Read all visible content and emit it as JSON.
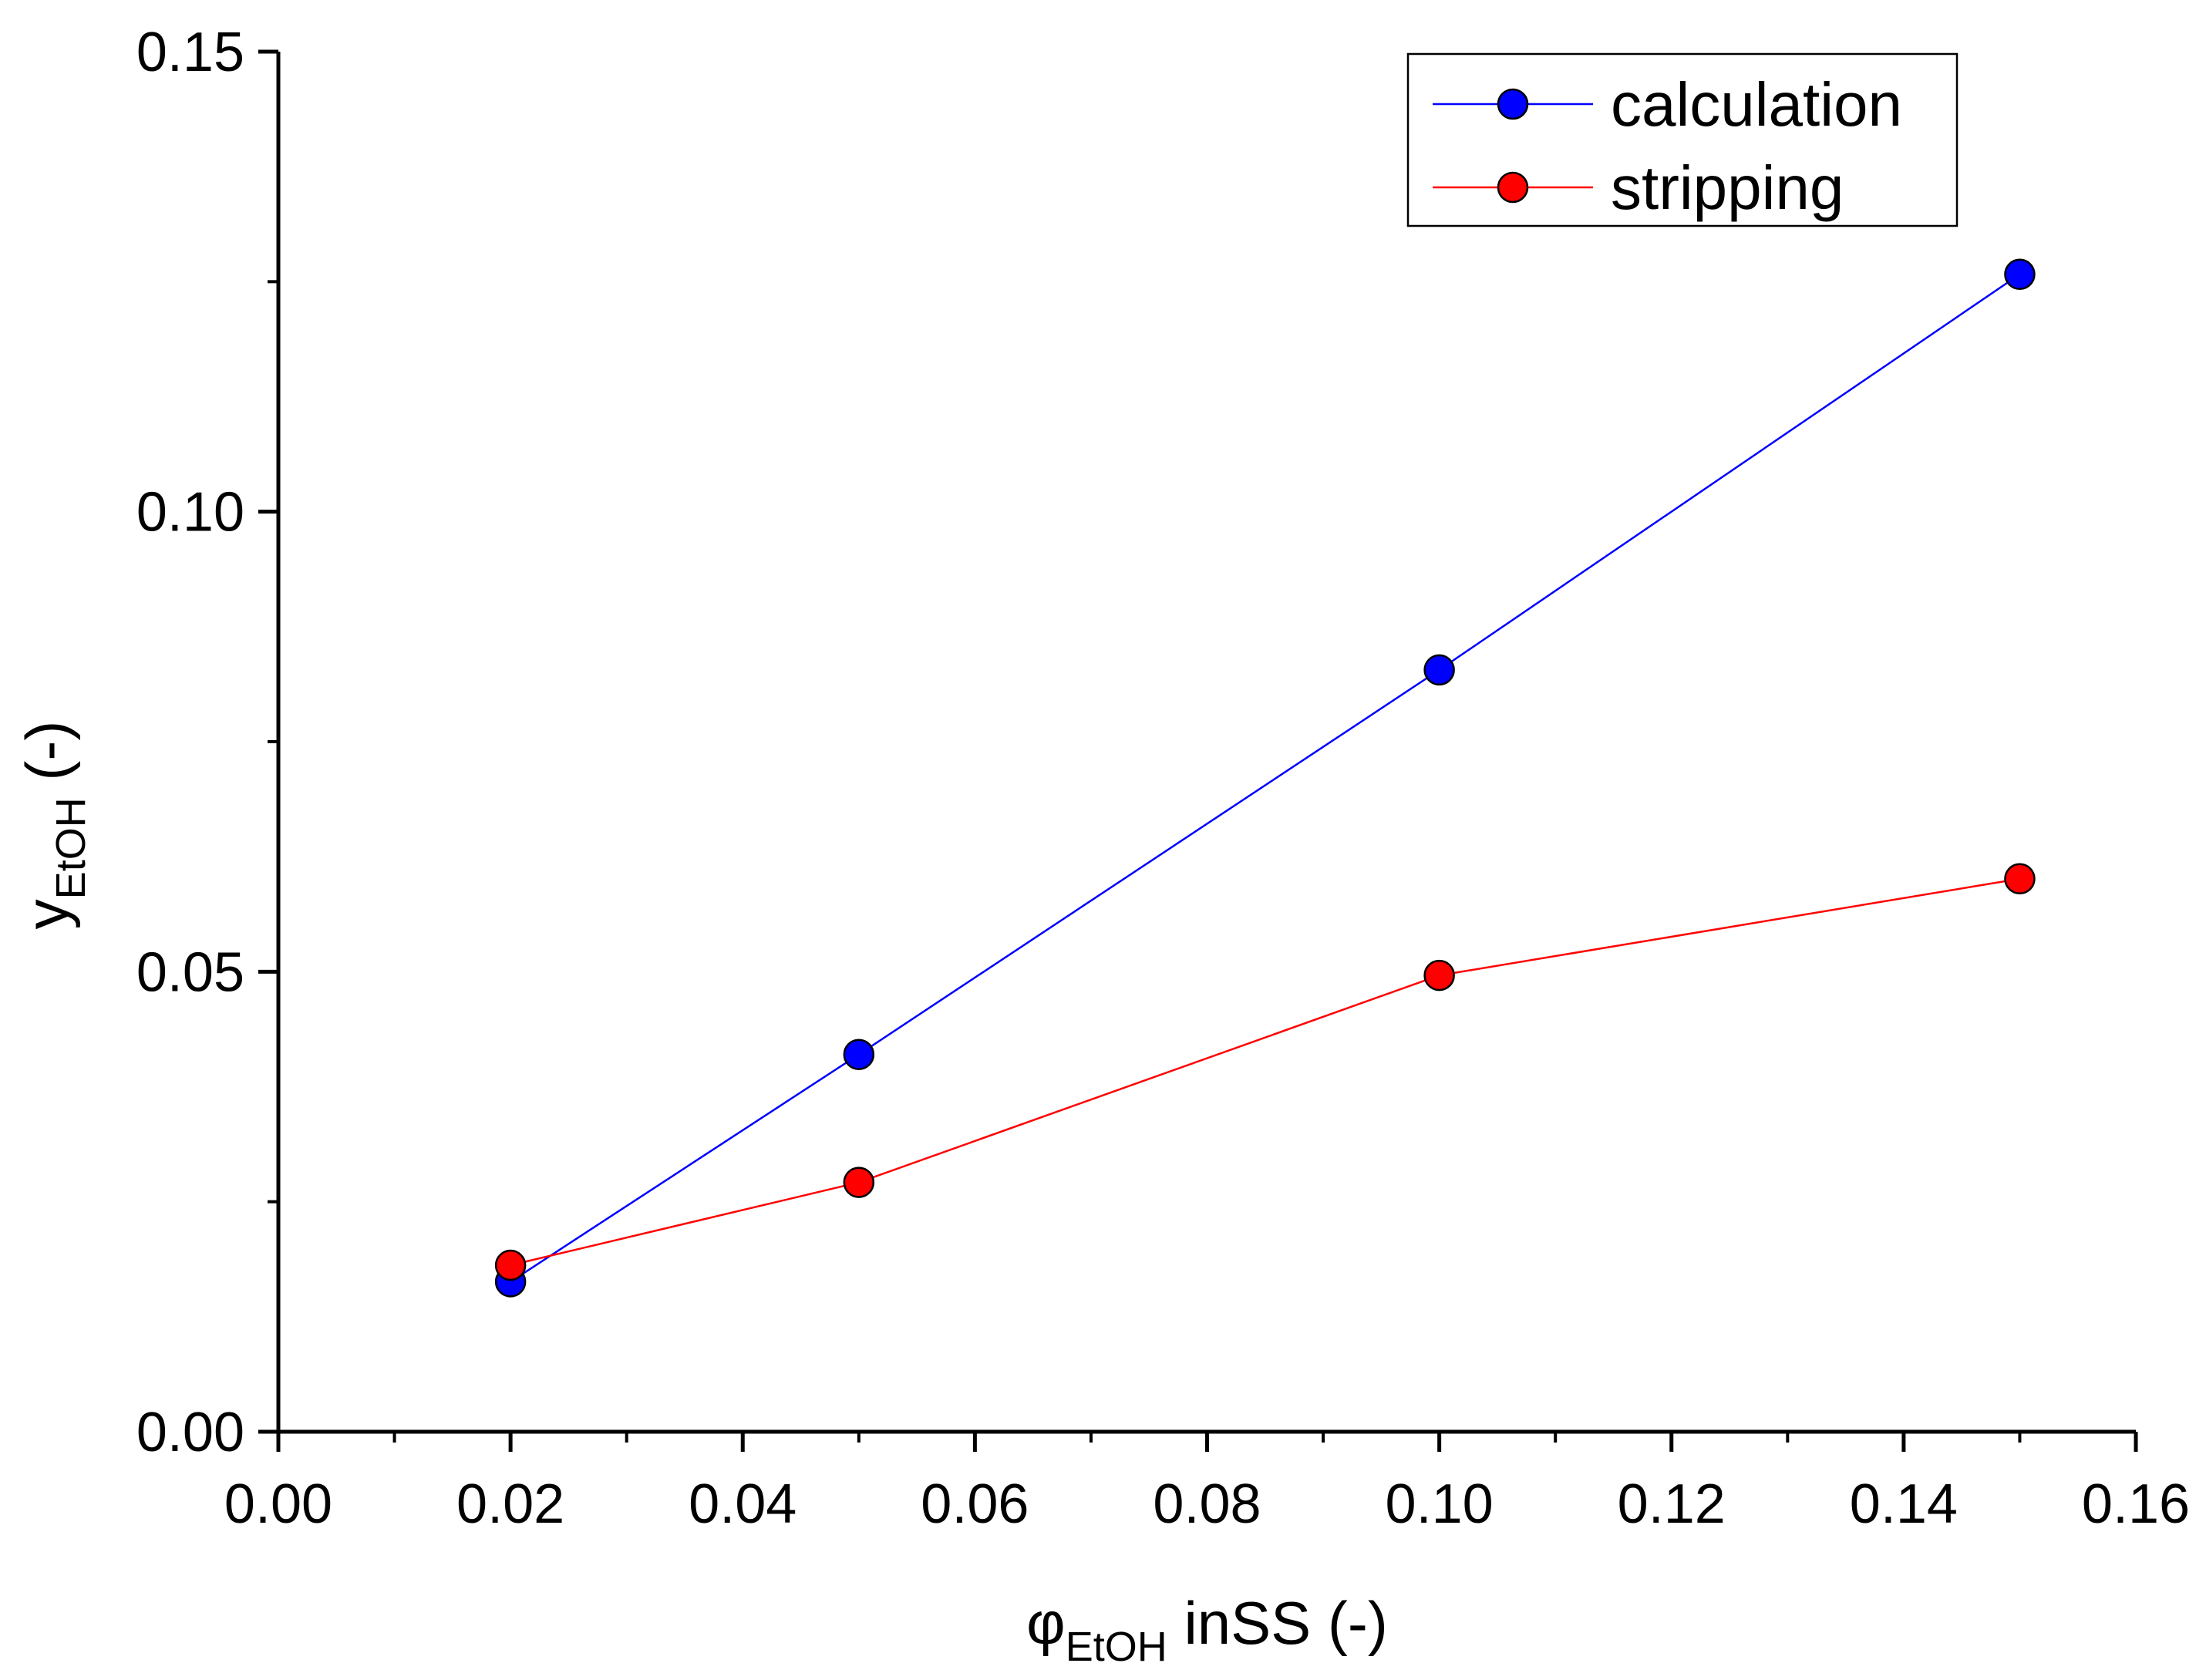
{
  "chart_data": {
    "type": "line",
    "title": "",
    "xlabel": {
      "symbol": "φ",
      "subscript": "EtOH",
      "suffix": " inSS (-)"
    },
    "ylabel": {
      "symbol": "y",
      "subscript": "EtOH",
      "suffix": " (-)"
    },
    "xlim": [
      0.0,
      0.16
    ],
    "ylim": [
      0.0,
      0.15
    ],
    "x_ticks": [
      0.0,
      0.02,
      0.04,
      0.06,
      0.08,
      0.1,
      0.12,
      0.14,
      0.16
    ],
    "x_tick_labels": [
      "0.00",
      "0.02",
      "0.04",
      "0.06",
      "0.08",
      "0.10",
      "0.12",
      "0.14",
      "0.16"
    ],
    "x_minor_ticks": [
      0.01,
      0.03,
      0.05,
      0.07,
      0.09,
      0.11,
      0.13,
      0.15
    ],
    "y_ticks": [
      0.0,
      0.05,
      0.1,
      0.15
    ],
    "y_tick_labels": [
      "0.00",
      "0.05",
      "0.10",
      "0.15"
    ],
    "y_minor_ticks": [
      0.025,
      0.075,
      0.125
    ],
    "grid": false,
    "legend_position": "top-right",
    "series": [
      {
        "name": "calculation",
        "color": "#0000ff",
        "x": [
          0.02,
          0.05,
          0.1,
          0.15
        ],
        "y": [
          0.0163,
          0.041,
          0.0828,
          0.1258
        ]
      },
      {
        "name": "stripping",
        "color": "#ff0000",
        "x": [
          0.02,
          0.05,
          0.1,
          0.15
        ],
        "y": [
          0.0181,
          0.0271,
          0.0496,
          0.0601
        ]
      }
    ]
  }
}
